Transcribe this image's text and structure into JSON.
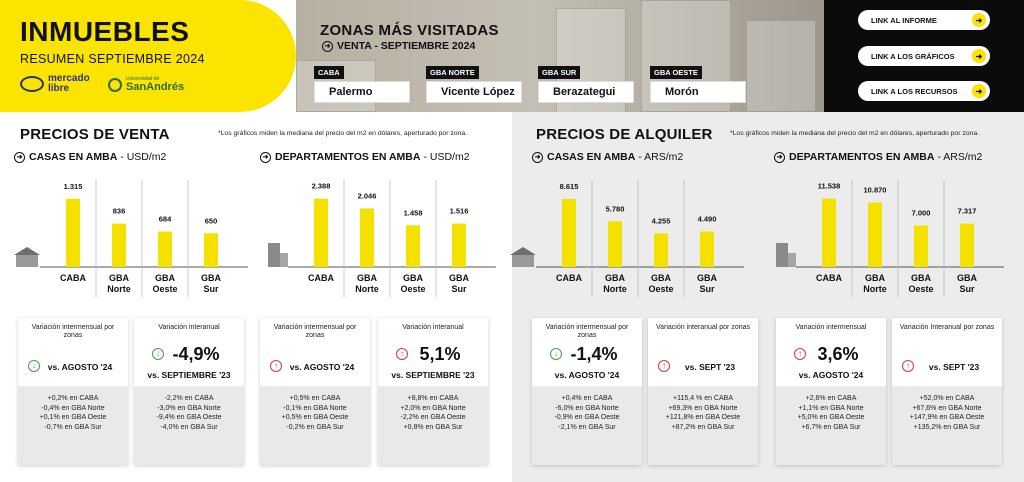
{
  "header": {
    "title": "INMUEBLES",
    "subtitle": "RESUMEN SEPTIEMBRE 2024",
    "logo_ml": [
      "mercado",
      "libre"
    ],
    "logo_usa_small": "Universidad de",
    "logo_usa_big": "SanAndrés",
    "zones_title": "ZONAS MÁS VISITADAS",
    "zones_sub": "VENTA - SEPTIEMBRE 2024",
    "zones": [
      {
        "label": "CABA",
        "value": "Palermo"
      },
      {
        "label": "GBA NORTE",
        "value": "Vicente López"
      },
      {
        "label": "GBA SUR",
        "value": "Berazategui"
      },
      {
        "label": "GBA OESTE",
        "value": "Morón"
      }
    ],
    "links": [
      "LINK AL INFORME",
      "LINK A LOS GRÁFICOS",
      "LINK A LOS RECURSOS"
    ]
  },
  "sections": {
    "venta": {
      "title": "PRECIOS DE VENTA",
      "note": "*Los gráficos miden  la mediana del precio del m2 en dólares, aperturado por zona."
    },
    "alquiler": {
      "title": "PRECIOS DE ALQUILER",
      "note": "*Los gráficos miden  la mediana del precio del m2 en dólares, aperturado por zona."
    }
  },
  "chart_data": [
    {
      "type": "bar",
      "title": "CASAS EN AMBA",
      "unit": "- USD/m2",
      "categories": [
        "CABA",
        "GBA\nNorte",
        "GBA\nOeste",
        "GBA\nSur"
      ],
      "values": [
        1315,
        836,
        684,
        650
      ],
      "labels": [
        "1.315",
        "836",
        "684",
        "650"
      ],
      "ylim": [
        0,
        1600
      ],
      "icon": "house"
    },
    {
      "type": "bar",
      "title": "DEPARTAMENTOS EN AMBA",
      "unit": "- USD/m2",
      "categories": [
        "CABA",
        "GBA\nNorte",
        "GBA\nOeste",
        "GBA\nSur"
      ],
      "values": [
        2388,
        2046,
        1458,
        1516
      ],
      "labels": [
        "2.388",
        "2.046",
        "1.458",
        "1.516"
      ],
      "ylim": [
        0,
        2900
      ],
      "icon": "building"
    },
    {
      "type": "bar",
      "title": "CASAS EN AMBA",
      "unit": "- ARS/m2",
      "categories": [
        "CABA",
        "GBA\nNorte",
        "GBA\nOeste",
        "GBA\nSur"
      ],
      "values": [
        8615,
        5780,
        4255,
        4490
      ],
      "labels": [
        "8.615",
        "5.780",
        "4.255",
        "4.490"
      ],
      "ylim": [
        0,
        10500
      ],
      "icon": "house"
    },
    {
      "type": "bar",
      "title": "DEPARTAMENTOS EN AMBA",
      "unit": "- ARS/m2",
      "categories": [
        "CABA",
        "GBA\nNorte",
        "GBA\nOeste",
        "GBA\nSur"
      ],
      "values": [
        11538,
        10870,
        7000,
        7317
      ],
      "labels": [
        "11.538",
        "10.870",
        "7.000",
        "7.317"
      ],
      "ylim": [
        0,
        14000
      ],
      "icon": "building"
    }
  ],
  "cards": [
    {
      "title": "Variación intermensual por zonas",
      "big": "",
      "period": "vs. AGOSTO '24",
      "dir": "down",
      "details": [
        "+0,2% en CABA",
        "-0,4% en GBA Norte",
        "+0,1% en GBA Oeste",
        "-0,7% en GBA Sur"
      ]
    },
    {
      "title": "Variación interanual",
      "big": "-4,9%",
      "period": "vs. SEPTIEMBRE '23",
      "dir": "down",
      "details": [
        "-2,2% en CABA",
        "-3,0% en GBA Norte",
        "-9,4% en GBA Oeste",
        "-4,0% en GBA Sur"
      ]
    },
    {
      "title": "Variación intermensual por zonas",
      "big": "",
      "period": "vs. AGOSTO '24",
      "dir": "up",
      "details": [
        "+0,5% en CABA",
        "-0,1% en GBA Norte",
        "+0,5% en GBA Oeste",
        "-0,2% en GBA Sur"
      ]
    },
    {
      "title": "Variación interanual",
      "big": "5,1%",
      "period": "vs. SEPTIEMBRE '23",
      "dir": "up",
      "details": [
        "+8,8% en CABA",
        "+2,0% en GBA Norte",
        "-2,2% en GBA Oeste",
        "+0,8% en GBA Sur"
      ]
    },
    {
      "title": "Variación intermensual por zonas",
      "big": "-1,4%",
      "period": "vs. AGOSTO '24",
      "dir": "down",
      "details": [
        "+0,4% en CABA",
        "-6,0% en GBA Norte",
        "-0,9% en GBA Oeste",
        "-2,1% en GBA Sur"
      ]
    },
    {
      "title": "Variación interanual por zonas",
      "big": "",
      "period": "vs. SEPT '23",
      "dir": "up",
      "details": [
        "+115,4 % en CABA",
        "+69,3% en GBA Norte",
        "+121,8% en GBA Oeste",
        "+87,2% en GBA Sur"
      ]
    },
    {
      "title": "Variación intermensual",
      "big": "3,6%",
      "period": "vs. AGOSTO '24",
      "dir": "up",
      "details": [
        "+2,6% en CABA",
        "+1,1% en GBA Norte",
        "+5,0% en GBA Oeste",
        "+6,7% en GBA Sur"
      ]
    },
    {
      "title": "Variación Interanual por zonas",
      "big": "",
      "period": "vs. SEPT '23",
      "dir": "up",
      "details": [
        "+52,0% en CABA",
        "+67,6% en GBA Norte",
        "+147,9% en GBA Oeste",
        "+135,2% en GBA Sur"
      ]
    }
  ],
  "colors": {
    "accent": "#fbe400",
    "bar": "#f5e100",
    "up": "#d33b3b",
    "down": "#3fa43f"
  }
}
